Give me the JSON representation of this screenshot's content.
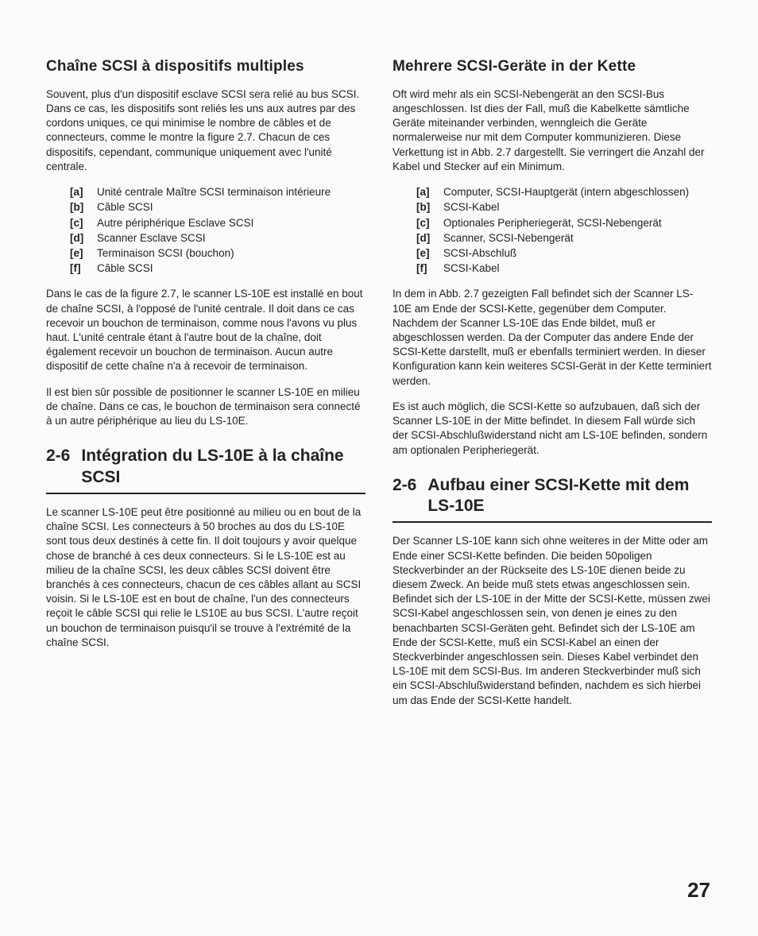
{
  "page_number": "27",
  "left": {
    "title1": "Chaîne SCSI à dispositifs multiples",
    "para1": "Souvent, plus d'un dispositif esclave SCSI sera relié au bus SCSI. Dans ce cas, les dispositifs sont reliés les uns aux autres par des cordons uniques, ce qui minimise le nombre de câbles et de connecteurs, comme le montre la figure 2.7. Chacun de ces dispositifs, cependant, communique uniquement avec l'unité centrale.",
    "list1": [
      {
        "key": "[a]",
        "text": "Unité centrale Maître SCSI terminaison intérieure"
      },
      {
        "key": "[b]",
        "text": "Câble SCSI"
      },
      {
        "key": "[c]",
        "text": "Autre périphérique Esclave SCSI"
      },
      {
        "key": "[d]",
        "text": "Scanner Esclave SCSI"
      },
      {
        "key": "[e]",
        "text": "Terminaison SCSI (bouchon)"
      },
      {
        "key": "[f]",
        "text": "Câble SCSI"
      }
    ],
    "para2": "Dans le cas de la figure 2.7, le scanner LS-10E est installé en bout de chaîne SCSI, à l'opposé de l'unité centrale. Il doit dans ce cas recevoir un bouchon de terminaison, comme nous l'avons vu plus haut. L'unité centrale étant à l'autre bout de la chaîne, doit également recevoir un bouchon de terminaison. Aucun autre dispositif de cette chaîne n'a à recevoir de terminaison.",
    "para3": "Il est bien sûr possible de positionner le scanner LS-10E en milieu de chaîne. Dans ce cas, le bouchon de terminaison sera connecté à un autre périphérique au lieu du LS-10E.",
    "heading2_num": "2-6",
    "heading2_title": "Intégration du LS-10E à la chaîne SCSI",
    "para4": "Le scanner LS-10E peut être positionné au milieu ou en bout de la chaîne SCSI. Les connecteurs à 50 broches au dos du LS-10E sont tous deux destinés à cette fin. Il doit toujours y avoir quelque chose de branché à ces deux connecteurs. Si le LS-10E est au milieu de la chaîne SCSI, les deux câbles SCSI doivent être branchés à ces connecteurs, chacun de ces câbles allant au SCSI voisin. Si le LS-10E est en bout de chaîne, l'un des connecteurs reçoit le câble SCSI qui relie le LS10E au bus SCSI. L'autre reçoit un bouchon de terminaison puisqu'il se trouve à l'extrémité de la chaîne SCSI."
  },
  "right": {
    "title1": "Mehrere SCSI-Geräte in der Kette",
    "para1": "Oft wird mehr als ein SCSI-Nebengerät an den SCSI-Bus angeschlossen. Ist dies der Fall, muß die Kabelkette sämtliche Geräte miteinander verbinden, wenngleich die Geräte normalerweise nur mit dem Computer kommunizieren. Diese Verkettung ist in Abb. 2.7 dargestellt. Sie verringert die Anzahl der Kabel und Stecker auf ein Minimum.",
    "list1": [
      {
        "key": "[a]",
        "text": "Computer, SCSI-Hauptgerät (intern abgeschlossen)"
      },
      {
        "key": "[b]",
        "text": "SCSI-Kabel"
      },
      {
        "key": "[c]",
        "text": "Optionales Peripheriegerät, SCSI-Nebengerät"
      },
      {
        "key": "[d]",
        "text": "Scanner, SCSI-Nebengerät"
      },
      {
        "key": "[e]",
        "text": "SCSI-Abschluß"
      },
      {
        "key": "[f]",
        "text": "SCSI-Kabel"
      }
    ],
    "para2": "In dem in Abb. 2.7 gezeigten Fall befindet sich der Scanner LS-10E am Ende der SCSI-Kette, gegenüber dem Computer. Nachdem der Scanner LS-10E das Ende bildet, muß er abgeschlossen werden. Da der Computer das andere Ende der SCSI-Kette darstellt, muß er ebenfalls terminiert werden. In dieser Konfiguration kann kein weiteres SCSI-Gerät in der Kette terminiert werden.",
    "para3": "Es ist auch möglich, die SCSI-Kette so aufzubauen, daß sich der Scanner LS-10E in der Mitte befindet. In diesem Fall würde sich der SCSI-Abschlußwiderstand nicht am LS-10E befinden, sondern am optionalen Peripheriegerät.",
    "heading2_num": "2-6",
    "heading2_title": "Aufbau einer SCSI-Kette mit dem LS-10E",
    "para4": "Der Scanner LS-10E kann sich ohne weiteres in der Mitte oder am Ende einer SCSI-Kette befinden. Die beiden 50poligen Steckverbinder an der Rückseite des LS-10E dienen beide zu diesem Zweck. An beide muß stets etwas angeschlossen sein. Befindet sich der LS-10E in der Mitte der SCSI-Kette, müssen zwei SCSI-Kabel angeschlossen sein, von denen je eines zu den benachbarten SCSI-Geräten geht. Befindet sich der LS-10E am Ende der SCSI-Kette, muß ein SCSI-Kabel an einen der Steckverbinder angeschlossen sein. Dieses Kabel verbindet den LS-10E mit dem SCSI-Bus. Im anderen Steckverbinder muß sich ein SCSI-Abschlußwiderstand befinden, nachdem es sich hierbei um das Ende der SCSI-Kette handelt."
  }
}
